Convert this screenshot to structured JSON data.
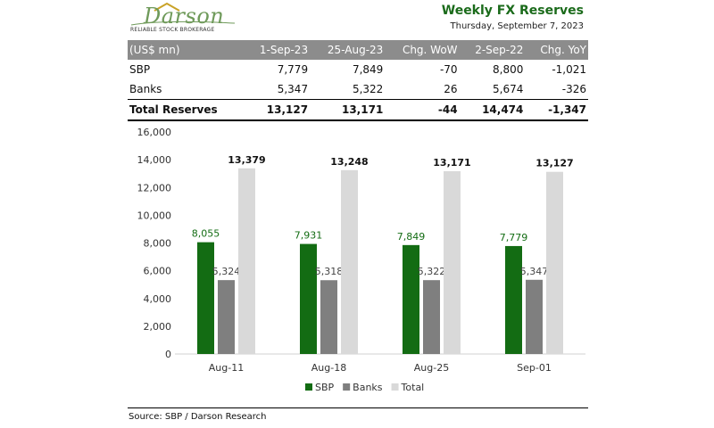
{
  "header": {
    "brand": "Darson",
    "tagline": "RELIABLE STOCK BROKERAGE",
    "title": "Weekly FX Reserves",
    "date": "Thursday, September 7, 2023"
  },
  "table": {
    "headers": [
      "(US$ mn)",
      "1-Sep-23",
      "25-Aug-23",
      "Chg. WoW",
      "2-Sep-22",
      "Chg. YoY"
    ],
    "rows": [
      [
        "SBP",
        "7,779",
        "7,849",
        "-70",
        "8,800",
        "-1,021"
      ],
      [
        "Banks",
        "5,347",
        "5,322",
        "26",
        "5,674",
        "-326"
      ]
    ],
    "total": [
      "Total Reserves",
      "13,127",
      "13,171",
      "-44",
      "14,474",
      "-1,347"
    ]
  },
  "colors": {
    "sbp": "#136c13",
    "banks": "#7f7f7f",
    "total": "#d9d9d9",
    "title": "#1b6b1b",
    "header_bg": "#8c8c8c"
  },
  "chart_data": {
    "type": "bar",
    "categories": [
      "Aug-11",
      "Aug-18",
      "Aug-25",
      "Sep-01"
    ],
    "series": [
      {
        "name": "SBP",
        "values": [
          8055,
          7931,
          7849,
          7779
        ],
        "labels": [
          "8,055",
          "7,931",
          "7,849",
          "7,779"
        ]
      },
      {
        "name": "Banks",
        "values": [
          5324,
          5318,
          5322,
          5347
        ],
        "labels": [
          "5,324",
          "5,318",
          "5,322",
          "5,347"
        ]
      },
      {
        "name": "Total",
        "values": [
          13379,
          13248,
          13171,
          13127
        ],
        "labels": [
          "13,379",
          "13,248",
          "13,171",
          "13,127"
        ]
      }
    ],
    "yticks": [
      0,
      2000,
      4000,
      6000,
      8000,
      10000,
      12000,
      14000,
      16000
    ],
    "ytick_labels": [
      "0",
      "2,000",
      "4,000",
      "6,000",
      "8,000",
      "10,000",
      "12,000",
      "14,000",
      "16,000"
    ],
    "ylim": [
      0,
      16000
    ],
    "legend": "bottom",
    "grid": false
  },
  "source": "Source: SBP / Darson Research"
}
